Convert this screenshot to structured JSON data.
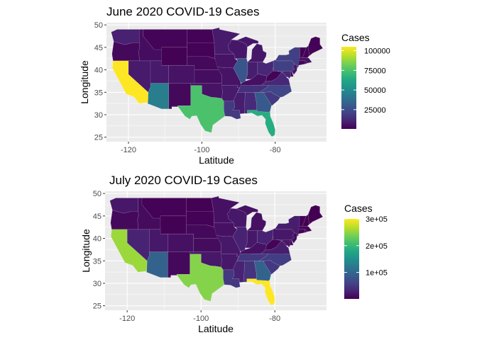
{
  "chart_data": [
    {
      "type": "heatmap",
      "subtype": "choropleth",
      "title": "June 2020 COVID-19 Cases",
      "xlabel": "Latitude",
      "ylabel": "Longitude",
      "x_ticks": [
        -120,
        -100,
        -80
      ],
      "y_ticks": [
        25,
        30,
        35,
        40,
        45,
        50
      ],
      "xlim": [
        -126,
        -66
      ],
      "ylim": [
        24,
        50.5
      ],
      "grid": true,
      "legend": {
        "title": "Cases",
        "position": "right",
        "ticks": [
          25000,
          50000,
          75000,
          100000
        ],
        "tick_labels": [
          "25000",
          "50000",
          "75000",
          "100000"
        ],
        "range": [
          500,
          105000
        ]
      },
      "colors": {
        "panel": "#ebebeb",
        "grid": "#ffffff",
        "low": "#440154",
        "high": "#fde725"
      },
      "states": [
        {
          "name": "California",
          "value": 105000
        },
        {
          "name": "Texas",
          "value": 75000
        },
        {
          "name": "Florida",
          "value": 65000
        },
        {
          "name": "Arizona",
          "value": 45000
        },
        {
          "name": "Georgia",
          "value": 30000
        },
        {
          "name": "Illinois",
          "value": 28000
        },
        {
          "name": "North Carolina",
          "value": 22000
        },
        {
          "name": "Pennsylvania",
          "value": 20000
        },
        {
          "name": "New York",
          "value": 20000
        },
        {
          "name": "Louisiana",
          "value": 18000
        },
        {
          "name": "South Carolina",
          "value": 18000
        },
        {
          "name": "Tennessee",
          "value": 15000
        },
        {
          "name": "Alabama",
          "value": 13000
        },
        {
          "name": "Virginia",
          "value": 12000
        },
        {
          "name": "Maryland",
          "value": 12000
        },
        {
          "name": "Washington",
          "value": 10000
        },
        {
          "name": "Minnesota",
          "value": 8000
        },
        {
          "name": "Ohio",
          "value": 12000
        },
        {
          "name": "Michigan",
          "value": 7000
        },
        {
          "name": "Indiana",
          "value": 9000
        },
        {
          "name": "Mississippi",
          "value": 9000
        },
        {
          "name": "Arkansas",
          "value": 8000
        },
        {
          "name": "Utah",
          "value": 8000
        },
        {
          "name": "Nevada",
          "value": 8000
        },
        {
          "name": "New Jersey",
          "value": 8000
        },
        {
          "name": "Massachusetts",
          "value": 6000
        },
        {
          "name": "Colorado",
          "value": 6000
        },
        {
          "name": "Wisconsin",
          "value": 7000
        },
        {
          "name": "Iowa",
          "value": 6000
        },
        {
          "name": "Missouri",
          "value": 6000
        },
        {
          "name": "Kentucky",
          "value": 5000
        },
        {
          "name": "Oklahoma",
          "value": 6000
        },
        {
          "name": "Kansas",
          "value": 4000
        },
        {
          "name": "Nebraska",
          "value": 3000
        },
        {
          "name": "New Mexico",
          "value": 3000
        },
        {
          "name": "Idaho",
          "value": 4000
        },
        {
          "name": "Oregon",
          "value": 3000
        },
        {
          "name": "Connecticut",
          "value": 2000
        },
        {
          "name": "West Virginia",
          "value": 1500
        },
        {
          "name": "Delaware",
          "value": 1500
        },
        {
          "name": "Rhode Island",
          "value": 1000
        },
        {
          "name": "Maine",
          "value": 1000
        },
        {
          "name": "New Hampshire",
          "value": 1000
        },
        {
          "name": "Vermont",
          "value": 500
        },
        {
          "name": "Montana",
          "value": 1500
        },
        {
          "name": "Wyoming",
          "value": 800
        },
        {
          "name": "North Dakota",
          "value": 1000
        },
        {
          "name": "South Dakota",
          "value": 1000
        }
      ]
    },
    {
      "type": "heatmap",
      "subtype": "choropleth",
      "title": "July 2020 COVID-19 Cases",
      "xlabel": "Latitude",
      "ylabel": "Longitude",
      "x_ticks": [
        -120,
        -100,
        -80
      ],
      "y_ticks": [
        25,
        30,
        35,
        40,
        45,
        50
      ],
      "xlim": [
        -126,
        -66
      ],
      "ylim": [
        24,
        50.5
      ],
      "grid": true,
      "legend": {
        "title": "Cases",
        "position": "right",
        "ticks": [
          100000,
          200000,
          300000
        ],
        "tick_labels": [
          "1e+05",
          "2e+05",
          "3e+05"
        ],
        "range": [
          1000,
          300000
        ]
      },
      "colors": {
        "panel": "#ebebeb",
        "grid": "#ffffff",
        "low": "#440154",
        "high": "#fde725"
      },
      "states": [
        {
          "name": "Florida",
          "value": 300000
        },
        {
          "name": "California",
          "value": 255000
        },
        {
          "name": "Texas",
          "value": 245000
        },
        {
          "name": "Arizona",
          "value": 95000
        },
        {
          "name": "Georgia",
          "value": 95000
        },
        {
          "name": "Louisiana",
          "value": 50000
        },
        {
          "name": "North Carolina",
          "value": 55000
        },
        {
          "name": "South Carolina",
          "value": 50000
        },
        {
          "name": "Tennessee",
          "value": 50000
        },
        {
          "name": "Alabama",
          "value": 45000
        },
        {
          "name": "Illinois",
          "value": 30000
        },
        {
          "name": "New York",
          "value": 25000
        },
        {
          "name": "Pennsylvania",
          "value": 20000
        },
        {
          "name": "Virginia",
          "value": 25000
        },
        {
          "name": "Mississippi",
          "value": 30000
        },
        {
          "name": "Ohio",
          "value": 30000
        },
        {
          "name": "Nevada",
          "value": 30000
        },
        {
          "name": "Maryland",
          "value": 20000
        },
        {
          "name": "Washington",
          "value": 20000
        },
        {
          "name": "Arkansas",
          "value": 20000
        },
        {
          "name": "Utah",
          "value": 20000
        },
        {
          "name": "Oklahoma",
          "value": 20000
        },
        {
          "name": "Missouri",
          "value": 20000
        },
        {
          "name": "Indiana",
          "value": 20000
        },
        {
          "name": "Minnesota",
          "value": 15000
        },
        {
          "name": "Wisconsin",
          "value": 20000
        },
        {
          "name": "Michigan",
          "value": 15000
        },
        {
          "name": "Kentucky",
          "value": 15000
        },
        {
          "name": "Iowa",
          "value": 15000
        },
        {
          "name": "Colorado",
          "value": 15000
        },
        {
          "name": "New Jersey",
          "value": 10000
        },
        {
          "name": "Massachusetts",
          "value": 5000
        },
        {
          "name": "Kansas",
          "value": 10000
        },
        {
          "name": "Idaho",
          "value": 10000
        },
        {
          "name": "Nebraska",
          "value": 8000
        },
        {
          "name": "New Mexico",
          "value": 8000
        },
        {
          "name": "Oregon",
          "value": 8000
        },
        {
          "name": "Connecticut",
          "value": 3000
        },
        {
          "name": "West Virginia",
          "value": 4000
        },
        {
          "name": "Delaware",
          "value": 3000
        },
        {
          "name": "Rhode Island",
          "value": 3000
        },
        {
          "name": "Maine",
          "value": 1000
        },
        {
          "name": "New Hampshire",
          "value": 1000
        },
        {
          "name": "Vermont",
          "value": 1000
        },
        {
          "name": "Montana",
          "value": 3000
        },
        {
          "name": "Wyoming",
          "value": 1500
        },
        {
          "name": "North Dakota",
          "value": 2000
        },
        {
          "name": "South Dakota",
          "value": 3000
        }
      ]
    }
  ]
}
